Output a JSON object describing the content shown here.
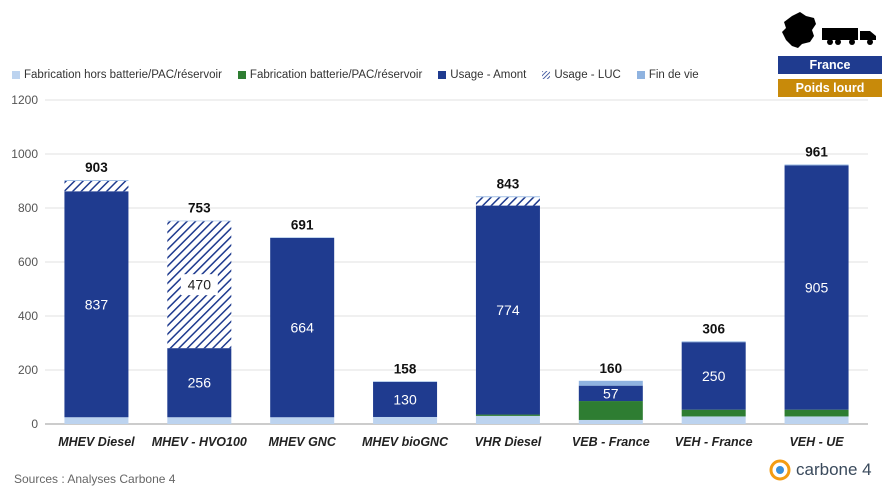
{
  "legend": [
    {
      "label": "Fabrication hors batterie/PAC/réservoir",
      "color": "#bcd3ef",
      "pattern": "solid"
    },
    {
      "label": "Fabrication batterie/PAC/réservoir",
      "color": "#2e7d32",
      "pattern": "solid"
    },
    {
      "label": "Usage - Amont",
      "color": "#1f3b8f",
      "pattern": "solid"
    },
    {
      "label": "Usage - LUC",
      "color": "#1f3b8f",
      "pattern": "hatch"
    },
    {
      "label": "Fin de vie",
      "color": "#8fb3e0",
      "pattern": "solid"
    }
  ],
  "badges": {
    "country": "France",
    "category": "Poids lourd",
    "country_color": "#1f3b8f",
    "category_color": "#c88a0a"
  },
  "source": "Sources : Analyses Carbone 4",
  "logo": {
    "text": "carbone 4",
    "icon": "carbone4-logo-icon"
  },
  "icons": [
    "france-map-icon",
    "truck-icon"
  ],
  "chart_data": {
    "type": "bar",
    "stacked": true,
    "ylim": [
      0,
      1200
    ],
    "yticks": [
      0,
      200,
      400,
      600,
      800,
      1000,
      1200
    ],
    "grid": true,
    "legend_position": "top",
    "categories": [
      "MHEV Diesel",
      "MHEV - HVO100",
      "MHEV GNC",
      "MHEV bioGNC",
      "VHR Diesel",
      "VEB - France",
      "VEH - France",
      "VEH - UE"
    ],
    "series": [
      {
        "name": "Fabrication hors batterie/PAC/réservoir",
        "color": "#bcd3ef",
        "values": [
          25,
          25,
          25,
          26,
          30,
          15,
          28,
          28
        ]
      },
      {
        "name": "Fabrication batterie/PAC/réservoir",
        "color": "#2e7d32",
        "values": [
          0,
          0,
          0,
          0,
          5,
          70,
          25,
          25
        ]
      },
      {
        "name": "Usage - Amont",
        "color": "#1f3b8f",
        "values": [
          837,
          256,
          664,
          130,
          774,
          57,
          250,
          905
        ]
      },
      {
        "name": "Usage - LUC",
        "color": "#1f3b8f",
        "hatch": true,
        "values": [
          38,
          470,
          0,
          0,
          31,
          0,
          0,
          0
        ]
      },
      {
        "name": "Fin de vie",
        "color": "#8fb3e0",
        "values": [
          3,
          2,
          2,
          2,
          3,
          18,
          3,
          3
        ]
      }
    ],
    "segment_labels": [
      {
        "category": 0,
        "series": 2,
        "text": "837"
      },
      {
        "category": 1,
        "series": 2,
        "text": "256"
      },
      {
        "category": 1,
        "series": 3,
        "text": "470"
      },
      {
        "category": 2,
        "series": 2,
        "text": "664"
      },
      {
        "category": 3,
        "series": 2,
        "text": "130"
      },
      {
        "category": 4,
        "series": 2,
        "text": "774"
      },
      {
        "category": 5,
        "series": 2,
        "text": "57"
      },
      {
        "category": 6,
        "series": 2,
        "text": "250"
      },
      {
        "category": 7,
        "series": 2,
        "text": "905"
      }
    ],
    "totals": [
      "903",
      "753",
      "691",
      "158",
      "843",
      "160",
      "306",
      "961"
    ]
  }
}
